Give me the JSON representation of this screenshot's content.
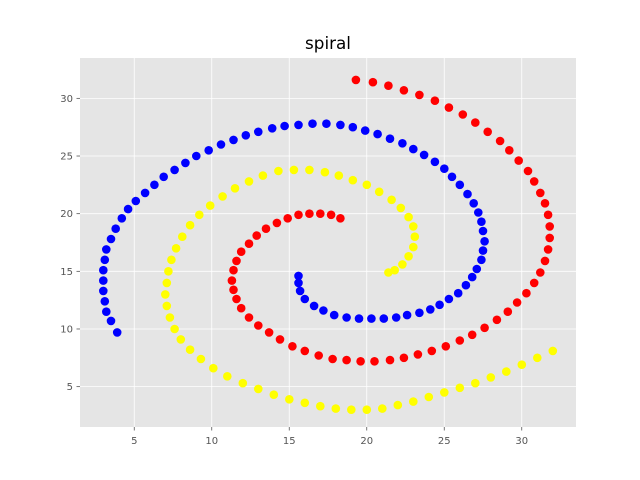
{
  "chart_data": {
    "type": "scatter",
    "title": "spiral",
    "xlabel": "",
    "ylabel": "",
    "xlim": [
      1.5,
      33.5
    ],
    "ylim": [
      1.5,
      33.5
    ],
    "xticks": [
      5,
      10,
      15,
      20,
      25,
      30
    ],
    "yticks": [
      5,
      10,
      15,
      20,
      25,
      30
    ],
    "grid": true,
    "legend": "none",
    "background": "#e5e5e5",
    "series": [
      {
        "color": "#0000ff",
        "points": [
          [
            3.9,
            9.7
          ],
          [
            3.5,
            10.7
          ],
          [
            3.2,
            11.5
          ],
          [
            3.1,
            12.4
          ],
          [
            3.0,
            13.3
          ],
          [
            3.0,
            14.2
          ],
          [
            3.0,
            15.1
          ],
          [
            3.1,
            16.0
          ],
          [
            3.2,
            16.9
          ],
          [
            3.5,
            17.8
          ],
          [
            3.8,
            18.7
          ],
          [
            4.2,
            19.6
          ],
          [
            4.6,
            20.4
          ],
          [
            5.1,
            21.1
          ],
          [
            5.7,
            21.8
          ],
          [
            6.3,
            22.5
          ],
          [
            6.9,
            23.2
          ],
          [
            7.6,
            23.8
          ],
          [
            8.3,
            24.4
          ],
          [
            9.0,
            25.0
          ],
          [
            9.8,
            25.5
          ],
          [
            10.6,
            26.0
          ],
          [
            11.4,
            26.4
          ],
          [
            12.2,
            26.8
          ],
          [
            13.0,
            27.1
          ],
          [
            13.9,
            27.4
          ],
          [
            14.7,
            27.6
          ],
          [
            15.6,
            27.7
          ],
          [
            16.5,
            27.8
          ],
          [
            17.4,
            27.8
          ],
          [
            18.3,
            27.7
          ],
          [
            19.1,
            27.5
          ],
          [
            19.9,
            27.2
          ],
          [
            20.7,
            26.9
          ],
          [
            21.5,
            26.5
          ],
          [
            22.3,
            26.1
          ],
          [
            23.0,
            25.6
          ],
          [
            23.7,
            25.1
          ],
          [
            24.4,
            24.5
          ],
          [
            25.0,
            23.9
          ],
          [
            25.5,
            23.2
          ],
          [
            26.0,
            22.5
          ],
          [
            26.5,
            21.7
          ],
          [
            26.9,
            20.9
          ],
          [
            27.2,
            20.1
          ],
          [
            27.4,
            19.3
          ],
          [
            27.5,
            18.5
          ],
          [
            27.6,
            17.6
          ],
          [
            27.5,
            16.8
          ],
          [
            27.4,
            16.0
          ],
          [
            27.1,
            15.2
          ],
          [
            26.8,
            14.5
          ],
          [
            26.4,
            13.8
          ],
          [
            25.9,
            13.1
          ],
          [
            25.3,
            12.6
          ],
          [
            24.7,
            12.1
          ],
          [
            24.1,
            11.7
          ],
          [
            23.4,
            11.4
          ],
          [
            22.6,
            11.2
          ],
          [
            21.9,
            11.0
          ],
          [
            21.1,
            10.9
          ],
          [
            20.3,
            10.9
          ],
          [
            19.5,
            10.9
          ],
          [
            18.7,
            11.0
          ],
          [
            17.9,
            11.2
          ],
          [
            17.2,
            11.6
          ],
          [
            16.6,
            12.0
          ],
          [
            16.0,
            12.6
          ],
          [
            15.7,
            13.3
          ],
          [
            15.6,
            14.0
          ],
          [
            15.6,
            14.6
          ]
        ]
      },
      {
        "color": "#ff0000",
        "points": [
          [
            19.3,
            31.6
          ],
          [
            20.4,
            31.4
          ],
          [
            21.4,
            31.1
          ],
          [
            22.4,
            30.7
          ],
          [
            23.4,
            30.3
          ],
          [
            24.4,
            29.8
          ],
          [
            25.3,
            29.2
          ],
          [
            26.2,
            28.6
          ],
          [
            27.0,
            27.9
          ],
          [
            27.8,
            27.1
          ],
          [
            28.6,
            26.3
          ],
          [
            29.2,
            25.5
          ],
          [
            29.8,
            24.6
          ],
          [
            30.4,
            23.7
          ],
          [
            30.8,
            22.8
          ],
          [
            31.2,
            21.8
          ],
          [
            31.5,
            20.9
          ],
          [
            31.7,
            19.9
          ],
          [
            31.8,
            18.9
          ],
          [
            31.8,
            17.9
          ],
          [
            31.7,
            16.9
          ],
          [
            31.5,
            15.9
          ],
          [
            31.2,
            14.9
          ],
          [
            30.8,
            14.0
          ],
          [
            30.3,
            13.1
          ],
          [
            29.7,
            12.3
          ],
          [
            29.1,
            11.5
          ],
          [
            28.4,
            10.8
          ],
          [
            27.6,
            10.1
          ],
          [
            26.8,
            9.5
          ],
          [
            26.0,
            9.0
          ],
          [
            25.1,
            8.5
          ],
          [
            24.2,
            8.1
          ],
          [
            23.3,
            7.8
          ],
          [
            22.4,
            7.5
          ],
          [
            21.5,
            7.3
          ],
          [
            20.5,
            7.2
          ],
          [
            19.6,
            7.2
          ],
          [
            18.7,
            7.3
          ],
          [
            17.8,
            7.4
          ],
          [
            16.9,
            7.7
          ],
          [
            16.0,
            8.1
          ],
          [
            15.2,
            8.5
          ],
          [
            14.4,
            9.1
          ],
          [
            13.7,
            9.7
          ],
          [
            13.0,
            10.3
          ],
          [
            12.4,
            11.0
          ],
          [
            11.9,
            11.8
          ],
          [
            11.6,
            12.6
          ],
          [
            11.4,
            13.4
          ],
          [
            11.3,
            14.2
          ],
          [
            11.4,
            15.1
          ],
          [
            11.6,
            15.9
          ],
          [
            11.9,
            16.7
          ],
          [
            12.4,
            17.4
          ],
          [
            12.9,
            18.1
          ],
          [
            13.5,
            18.7
          ],
          [
            14.2,
            19.2
          ],
          [
            14.9,
            19.6
          ],
          [
            15.6,
            19.9
          ],
          [
            16.3,
            20.0
          ],
          [
            17.0,
            20.0
          ],
          [
            17.7,
            19.9
          ],
          [
            18.3,
            19.6
          ]
        ]
      },
      {
        "color": "#ffff00",
        "points": [
          [
            32.0,
            8.1
          ],
          [
            31.0,
            7.5
          ],
          [
            30.0,
            6.9
          ],
          [
            29.0,
            6.3
          ],
          [
            28.0,
            5.8
          ],
          [
            27.0,
            5.3
          ],
          [
            26.0,
            4.9
          ],
          [
            25.0,
            4.5
          ],
          [
            24.0,
            4.1
          ],
          [
            23.0,
            3.7
          ],
          [
            22.0,
            3.4
          ],
          [
            21.0,
            3.1
          ],
          [
            20.0,
            3.0
          ],
          [
            19.0,
            3.0
          ],
          [
            18.0,
            3.1
          ],
          [
            17.0,
            3.3
          ],
          [
            16.0,
            3.6
          ],
          [
            15.0,
            3.9
          ],
          [
            14.0,
            4.3
          ],
          [
            13.0,
            4.8
          ],
          [
            12.0,
            5.3
          ],
          [
            11.0,
            5.9
          ],
          [
            10.1,
            6.6
          ],
          [
            9.3,
            7.4
          ],
          [
            8.6,
            8.2
          ],
          [
            8.0,
            9.1
          ],
          [
            7.6,
            10.0
          ],
          [
            7.3,
            11.0
          ],
          [
            7.1,
            12.0
          ],
          [
            7.0,
            13.0
          ],
          [
            7.1,
            14.0
          ],
          [
            7.2,
            15.0
          ],
          [
            7.4,
            16.0
          ],
          [
            7.7,
            17.0
          ],
          [
            8.1,
            18.0
          ],
          [
            8.6,
            19.0
          ],
          [
            9.2,
            19.9
          ],
          [
            9.9,
            20.7
          ],
          [
            10.7,
            21.5
          ],
          [
            11.5,
            22.2
          ],
          [
            12.4,
            22.8
          ],
          [
            13.3,
            23.3
          ],
          [
            14.3,
            23.7
          ],
          [
            15.3,
            23.8
          ],
          [
            16.3,
            23.8
          ],
          [
            17.3,
            23.6
          ],
          [
            18.2,
            23.3
          ],
          [
            19.1,
            22.9
          ],
          [
            20.0,
            22.5
          ],
          [
            20.8,
            21.9
          ],
          [
            21.6,
            21.2
          ],
          [
            22.2,
            20.5
          ],
          [
            22.7,
            19.7
          ],
          [
            23.0,
            18.9
          ],
          [
            23.1,
            18.0
          ],
          [
            23.0,
            17.1
          ],
          [
            22.7,
            16.3
          ],
          [
            22.3,
            15.6
          ],
          [
            21.8,
            15.1
          ],
          [
            21.4,
            14.9
          ]
        ]
      }
    ]
  }
}
